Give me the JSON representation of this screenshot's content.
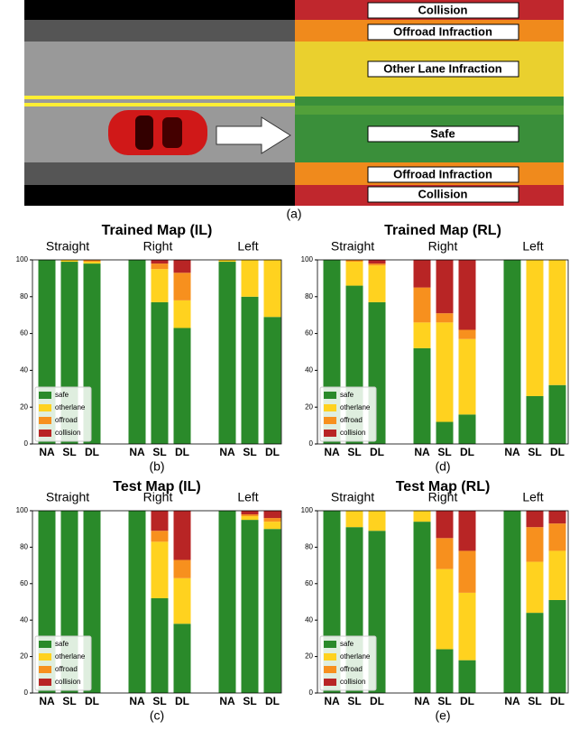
{
  "diagram": {
    "labels": [
      "Collision",
      "Offroad Infraction",
      "Other Lane Infraction",
      "Safe",
      "Offroad Infraction",
      "Collision"
    ],
    "caption": "(a)"
  },
  "chart_data": [
    {
      "type": "bar",
      "stacked": true,
      "title": "Trained Map (IL)",
      "caption": "(b)",
      "groups": [
        "Straight",
        "Right",
        "Left"
      ],
      "categories": [
        "NA",
        "SL",
        "DL",
        "NA",
        "SL",
        "DL",
        "NA",
        "SL",
        "DL"
      ],
      "ylim": [
        0,
        100
      ],
      "yticks": [
        0,
        20,
        40,
        60,
        80,
        100
      ],
      "legend": "lower left",
      "series": [
        {
          "name": "safe",
          "color": "#2a8a2a",
          "values": [
            100,
            99,
            98,
            100,
            77,
            63,
            99,
            80,
            69
          ]
        },
        {
          "name": "otherlane",
          "color": "#ffd21f",
          "values": [
            0,
            1,
            1,
            0,
            18,
            15,
            1,
            20,
            31
          ]
        },
        {
          "name": "offroad",
          "color": "#f7901e",
          "values": [
            0,
            0,
            1,
            0,
            3,
            15,
            0,
            0,
            0
          ]
        },
        {
          "name": "collision",
          "color": "#b82525",
          "values": [
            0,
            0,
            0,
            0,
            2,
            7,
            0,
            0,
            0
          ]
        }
      ]
    },
    {
      "type": "bar",
      "stacked": true,
      "title": "Trained Map (RL)",
      "caption": "(d)",
      "groups": [
        "Straight",
        "Right",
        "Left"
      ],
      "categories": [
        "NA",
        "SL",
        "DL",
        "NA",
        "SL",
        "DL",
        "NA",
        "SL",
        "DL"
      ],
      "ylim": [
        0,
        100
      ],
      "yticks": [
        0,
        20,
        40,
        60,
        80,
        100
      ],
      "legend": "lower left",
      "series": [
        {
          "name": "safe",
          "color": "#2a8a2a",
          "values": [
            100,
            86,
            77,
            52,
            12,
            16,
            100,
            26,
            32
          ]
        },
        {
          "name": "otherlane",
          "color": "#ffd21f",
          "values": [
            0,
            13,
            20,
            14,
            54,
            41,
            0,
            74,
            68
          ]
        },
        {
          "name": "offroad",
          "color": "#f7901e",
          "values": [
            0,
            1,
            1,
            19,
            5,
            5,
            0,
            0,
            0
          ]
        },
        {
          "name": "collision",
          "color": "#b82525",
          "values": [
            0,
            0,
            2,
            15,
            29,
            38,
            0,
            0,
            0
          ]
        }
      ]
    },
    {
      "type": "bar",
      "stacked": true,
      "title": "Test Map (IL)",
      "caption": "(c)",
      "groups": [
        "Straight",
        "Right",
        "Left"
      ],
      "categories": [
        "NA",
        "SL",
        "DL",
        "NA",
        "SL",
        "DL",
        "NA",
        "SL",
        "DL"
      ],
      "ylim": [
        0,
        100
      ],
      "yticks": [
        0,
        20,
        40,
        60,
        80,
        100
      ],
      "legend": "lower left",
      "series": [
        {
          "name": "safe",
          "color": "#2a8a2a",
          "values": [
            100,
            100,
            100,
            100,
            52,
            38,
            100,
            95,
            90
          ]
        },
        {
          "name": "otherlane",
          "color": "#ffd21f",
          "values": [
            0,
            0,
            0,
            0,
            31,
            25,
            0,
            2,
            4
          ]
        },
        {
          "name": "offroad",
          "color": "#f7901e",
          "values": [
            0,
            0,
            0,
            0,
            6,
            10,
            0,
            1,
            2
          ]
        },
        {
          "name": "collision",
          "color": "#b82525",
          "values": [
            0,
            0,
            0,
            0,
            11,
            27,
            0,
            2,
            4
          ]
        }
      ]
    },
    {
      "type": "bar",
      "stacked": true,
      "title": "Test Map (RL)",
      "caption": "(e)",
      "groups": [
        "Straight",
        "Right",
        "Left"
      ],
      "categories": [
        "NA",
        "SL",
        "DL",
        "NA",
        "SL",
        "DL",
        "NA",
        "SL",
        "DL"
      ],
      "ylim": [
        0,
        100
      ],
      "yticks": [
        0,
        20,
        40,
        60,
        80,
        100
      ],
      "legend": "lower left",
      "series": [
        {
          "name": "safe",
          "color": "#2a8a2a",
          "values": [
            100,
            91,
            89,
            94,
            24,
            18,
            100,
            44,
            51
          ]
        },
        {
          "name": "otherlane",
          "color": "#ffd21f",
          "values": [
            0,
            9,
            11,
            6,
            44,
            37,
            0,
            28,
            27
          ]
        },
        {
          "name": "offroad",
          "color": "#f7901e",
          "values": [
            0,
            0,
            0,
            0,
            17,
            23,
            0,
            19,
            15
          ]
        },
        {
          "name": "collision",
          "color": "#b82525",
          "values": [
            0,
            0,
            0,
            0,
            15,
            22,
            0,
            9,
            7
          ]
        }
      ]
    }
  ]
}
